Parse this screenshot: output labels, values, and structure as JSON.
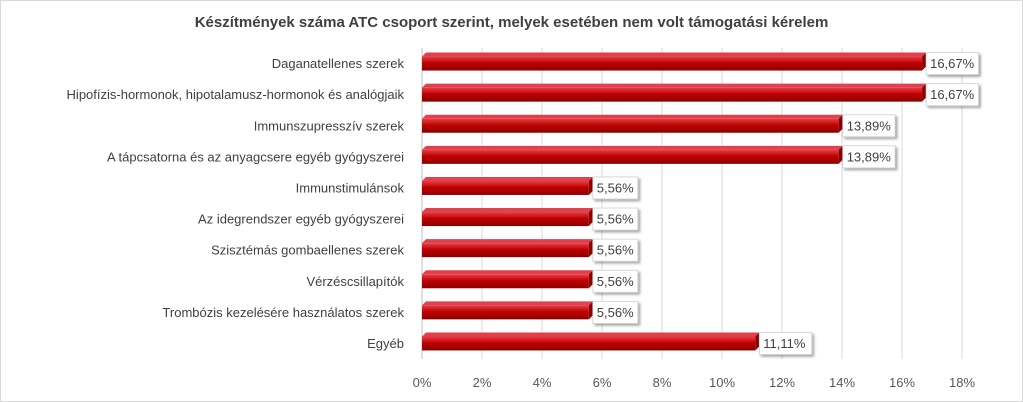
{
  "chart_data": {
    "type": "bar",
    "orientation": "horizontal",
    "title": "Készítmények száma ATC csoport szerint, melyek esetében nem volt támogatási kérelem",
    "categories": [
      "Daganatellenes szerek",
      "Hipofízis-hormonok, hipotalamusz-hormonok és analógjaik",
      "Immunszupresszív szerek",
      "A tápcsatorna és az anyagcsere egyéb gyógyszerei",
      "Immunstimulánsok",
      "Az idegrendszer egyéb gyógyszerei",
      "Szisztémás gombaellenes szerek",
      "Vérzéscsillapítók",
      "Trombózis kezelésére használatos szerek",
      "Egyéb"
    ],
    "values": [
      16.67,
      16.67,
      13.89,
      13.89,
      5.56,
      5.56,
      5.56,
      5.56,
      5.56,
      11.11
    ],
    "data_labels": [
      "16,67%",
      "16,67%",
      "13,89%",
      "13,89%",
      "5,56%",
      "5,56%",
      "5,56%",
      "5,56%",
      "5,56%",
      "11,11%"
    ],
    "xlim": [
      0,
      18
    ],
    "xticks": [
      "0%",
      "2%",
      "4%",
      "6%",
      "8%",
      "10%",
      "12%",
      "14%",
      "16%",
      "18%"
    ],
    "grid": true,
    "bar_color": "#c00000",
    "bar_highlight_color": "#e4404b",
    "bar_shadow_color": "#8b0000"
  }
}
